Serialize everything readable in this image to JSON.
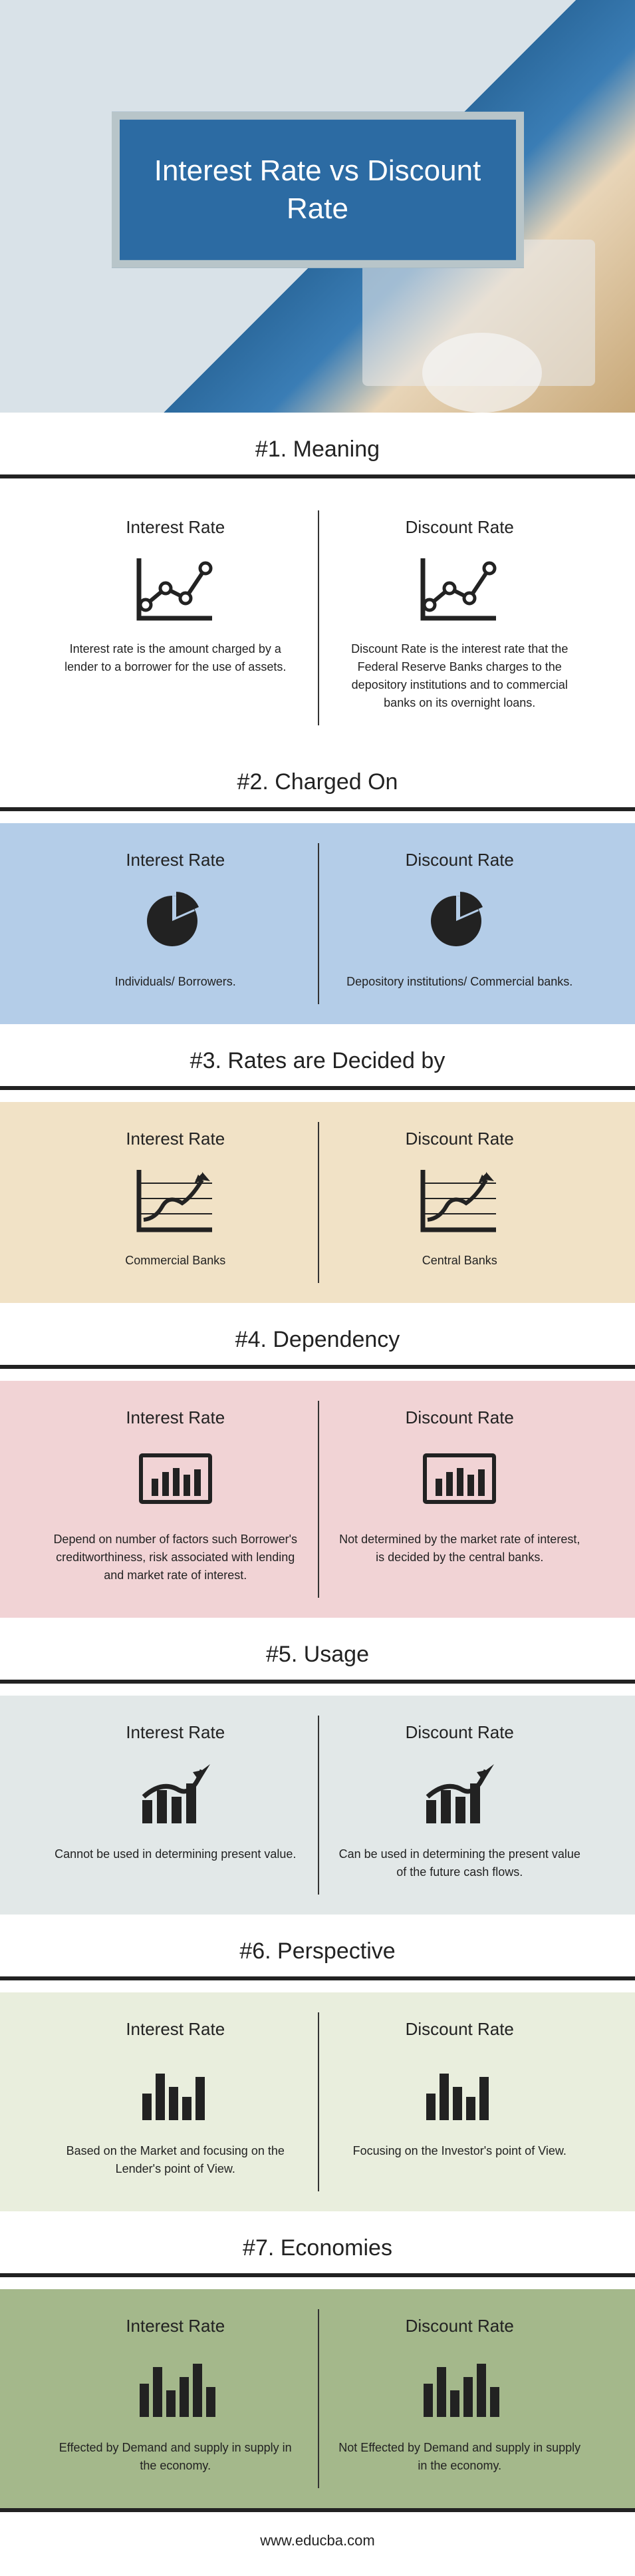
{
  "title": "Interest Rate vs Discount Rate",
  "title_bg": "#2c6ba3",
  "footer": "www.educba.com",
  "col_headers": {
    "left": "Interest Rate",
    "right": "Discount Rate"
  },
  "sections": [
    {
      "heading": "#1. Meaning",
      "bg": "#ffffff",
      "icon": "line-chart-dots",
      "left": "Interest rate is the amount charged by a lender to a borrower for the use of assets.",
      "right": "Discount Rate is the interest rate that the Federal Reserve Banks charges to the depository institutions and to commercial banks on its overnight loans."
    },
    {
      "heading": "#2. Charged On",
      "bg": "#b4cde8",
      "icon": "pie",
      "left": "Individuals/ Borrowers.",
      "right": "Depository institutions/ Commercial banks."
    },
    {
      "heading": "#3. Rates are Decided by",
      "bg": "#f1e2c6",
      "icon": "trend-line",
      "left": "Commercial Banks",
      "right": "Central Banks"
    },
    {
      "heading": "#4. Dependency",
      "bg": "#f1d3d5",
      "icon": "bar-window",
      "left": "Depend on number of factors such Borrower's creditworthiness, risk associated with lending and market rate of interest.",
      "right": "Not determined by the market rate of interest, is decided by the central banks."
    },
    {
      "heading": "#5. Usage",
      "bg": "#e2e8e8",
      "icon": "bar-arrow",
      "left": "Cannot be used in determining present value.",
      "right": "Can be used in determining the present value of the future cash flows."
    },
    {
      "heading": "#6. Perspective",
      "bg": "#e9eedd",
      "icon": "bars",
      "left": "Based on the Market and focusing on the Lender's point of View.",
      "right": "Focusing on the Investor's point of View."
    },
    {
      "heading": "#7. Economies",
      "bg": "#a4b88b",
      "icon": "bars-skyline",
      "left": "Effected by Demand and supply in supply in the economy.",
      "right": "Not Effected by Demand and supply in supply in the economy."
    }
  ],
  "colors": {
    "line": "#222222",
    "text": "#222222"
  }
}
